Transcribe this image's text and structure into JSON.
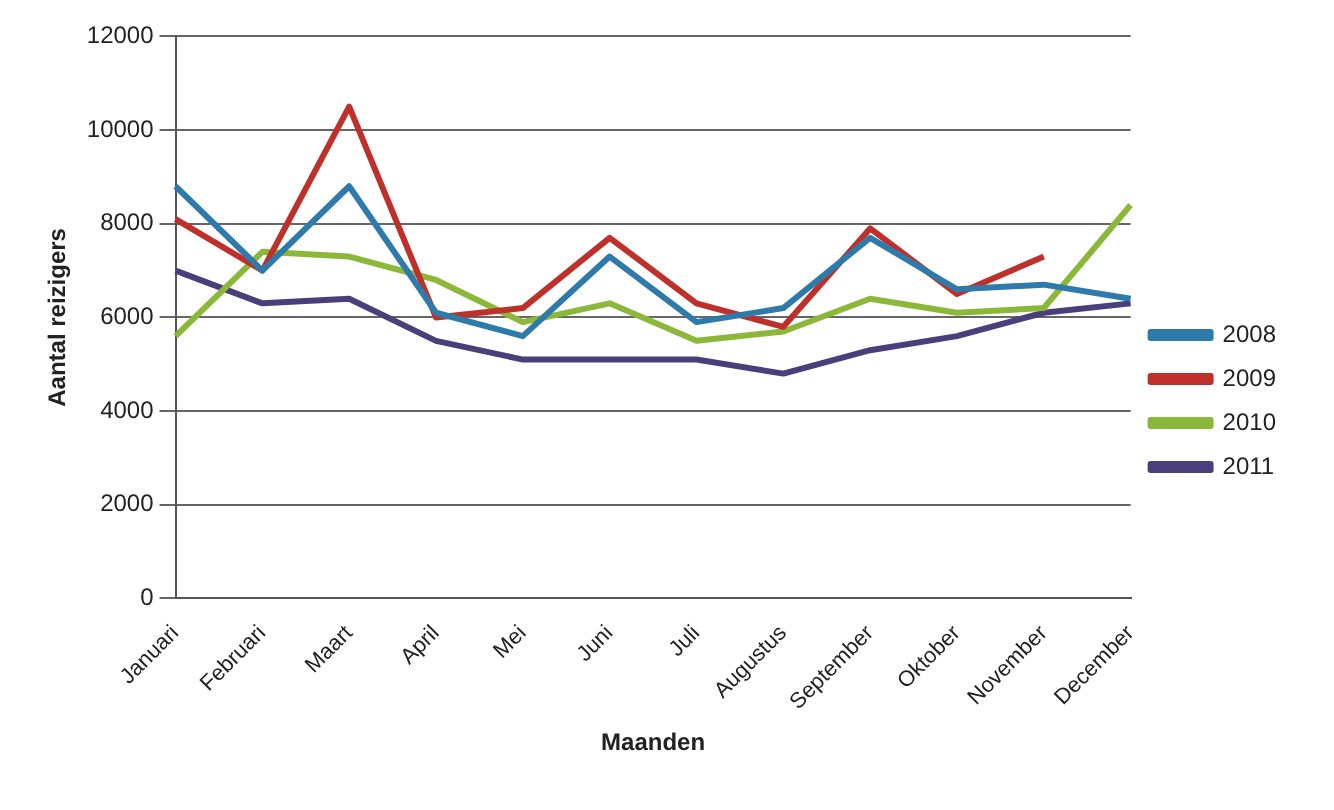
{
  "chart_data": {
    "type": "line",
    "xlabel": "Maanden",
    "ylabel": "Aantal reizigers",
    "categories": [
      "Januari",
      "Februari",
      "Maart",
      "April",
      "Mei",
      "Juni",
      "Juli",
      "Augustus",
      "September",
      "Oktober",
      "November",
      "December"
    ],
    "series": [
      {
        "name": "2008",
        "color": "#2e7bab",
        "values": [
          8800,
          7000,
          8800,
          6100,
          5600,
          7300,
          5900,
          6200,
          7700,
          6600,
          6700,
          6400
        ]
      },
      {
        "name": "2009",
        "color": "#c0302a",
        "values": [
          8100,
          7000,
          10500,
          6000,
          6200,
          7700,
          6300,
          5800,
          7900,
          6500,
          7300,
          null
        ]
      },
      {
        "name": "2010",
        "color": "#8cb83a",
        "values": [
          5600,
          7400,
          7300,
          6800,
          5900,
          6300,
          5500,
          5700,
          6400,
          6100,
          6200,
          8400
        ]
      },
      {
        "name": "2011",
        "color": "#4a3f7a",
        "values": [
          7000,
          6300,
          6400,
          5500,
          5100,
          5100,
          5100,
          4800,
          5300,
          5600,
          6100,
          6300
        ]
      }
    ],
    "ylim": [
      0,
      12000
    ],
    "yticks": [
      0,
      2000,
      4000,
      6000,
      8000,
      10000,
      12000
    ],
    "grid": "y",
    "legend": "right",
    "marker": "none"
  }
}
